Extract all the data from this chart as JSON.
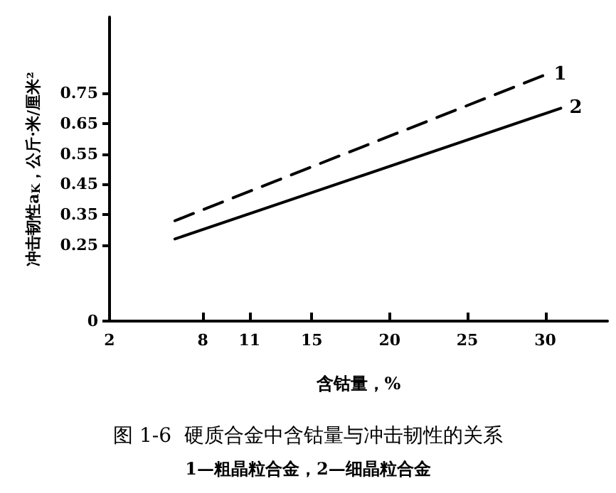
{
  "chart_data": {
    "type": "line",
    "title": "图 1-6  硬质合金中含钴量与冲击韧性的关系",
    "subtitle": "1—粗晶粒合金，2—细晶粒合金",
    "xlabel": "含钴量，%",
    "ylabel": "冲击韧性a$_{K}$，公斤·米/厘米²",
    "xlim": [
      2,
      34
    ],
    "xticks": [
      2,
      8,
      11,
      15,
      20,
      25,
      30
    ],
    "ylim": [
      0,
      1.0
    ],
    "yticks": [
      0,
      0.25,
      0.35,
      0.45,
      0.55,
      0.65,
      0.75
    ],
    "series": [
      {
        "name": "1",
        "color": "#000000",
        "line_style": "dashed",
        "x": [
          6.2,
          30
        ],
        "values": [
          0.33,
          0.81
        ]
      },
      {
        "name": "2",
        "color": "#000000",
        "line_style": "solid",
        "x": [
          6.2,
          31
        ],
        "values": [
          0.27,
          0.7
        ]
      }
    ],
    "marker": "none",
    "grid": false,
    "legend": false
  }
}
